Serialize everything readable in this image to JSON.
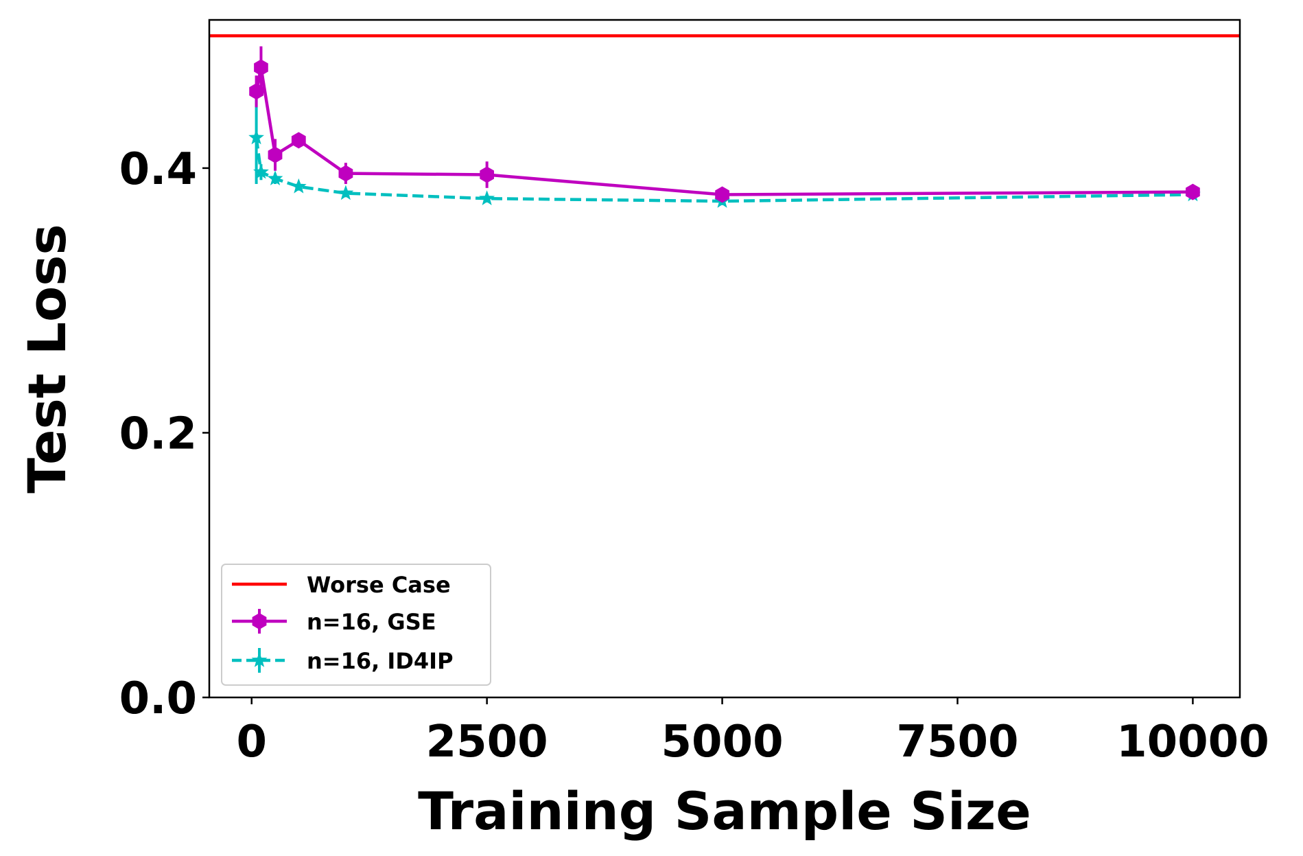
{
  "chart_data": {
    "type": "line",
    "title": "",
    "xlabel": "Training Sample Size",
    "ylabel": "Test Loss",
    "xlim": [
      -450,
      10500
    ],
    "ylim": [
      0.0,
      0.512
    ],
    "xticks": [
      0,
      2500,
      5000,
      7500,
      10000
    ],
    "xtick_labels": [
      "0",
      "2500",
      "5000",
      "7500",
      "10000"
    ],
    "yticks": [
      0.0,
      0.2,
      0.4
    ],
    "ytick_labels": [
      "0.0",
      "0.2",
      "0.4"
    ],
    "grid": false,
    "legend_position": "lower-left",
    "reference_line": {
      "name": "Worse Case",
      "y": 0.5,
      "color": "#ff0000"
    },
    "series": [
      {
        "name": "n=16, GSE",
        "color": "#bf00bf",
        "linestyle": "solid",
        "marker": "hexagon",
        "x": [
          50,
          100,
          250,
          500,
          1000,
          2500,
          5000,
          10000
        ],
        "y": [
          0.458,
          0.476,
          0.41,
          0.421,
          0.396,
          0.395,
          0.38,
          0.382
        ],
        "err": [
          0.012,
          0.016,
          0.012,
          0.004,
          0.008,
          0.01,
          0.004,
          0.003
        ]
      },
      {
        "name": "n=16, ID4IP",
        "color": "#00bfbf",
        "linestyle": "dashed",
        "marker": "star",
        "x": [
          50,
          100,
          250,
          500,
          1000,
          2500,
          5000,
          10000
        ],
        "y": [
          0.423,
          0.397,
          0.392,
          0.386,
          0.381,
          0.377,
          0.375,
          0.38
        ],
        "err": [
          0.035,
          0.006,
          0.004,
          0.003,
          0.003,
          0.003,
          0.003,
          0.003
        ]
      }
    ]
  }
}
